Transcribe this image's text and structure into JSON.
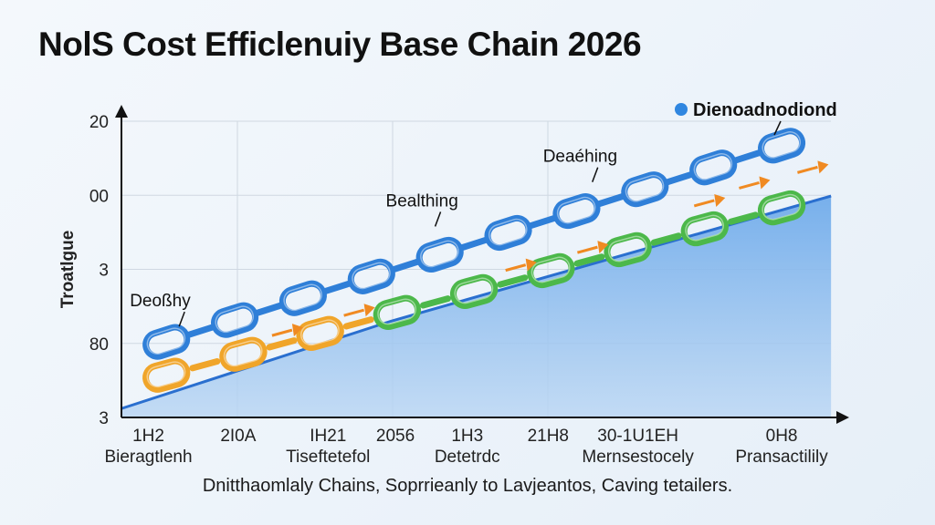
{
  "title": "NolS Cost Efficlenuiy Base Chain 2026",
  "caption": "Dnitthaomlaly Chains, Soprrieanly to Lavjeantos, Caving tetailers.",
  "chart_data": {
    "type": "line",
    "title": "NolS Cost Efficlenuiy Base Chain 2026",
    "ylabel": "Troatlgue",
    "xlabel": "",
    "ylim": [
      0,
      4
    ],
    "xlim": [
      0,
      8
    ],
    "grid": true,
    "legend": {
      "placement": "top-right",
      "entries": [
        {
          "label": "Dienoadnodiond",
          "color": "#2f86e0"
        }
      ]
    },
    "y_ticks": [
      {
        "value": 4,
        "label": "20"
      },
      {
        "value": 3,
        "label": "00"
      },
      {
        "value": 2,
        "label": "3"
      },
      {
        "value": 1,
        "label": "80"
      },
      {
        "value": 0,
        "label": "3"
      }
    ],
    "x_ticks": [
      {
        "value": 0.3,
        "top": "1H2",
        "bottom": "Bieragtlenh"
      },
      {
        "value": 1.3,
        "top": "2I0A",
        "bottom": ""
      },
      {
        "value": 2.3,
        "top": "IH21",
        "bottom": "Tiseftetefol"
      },
      {
        "value": 3.05,
        "top": "2056",
        "bottom": ""
      },
      {
        "value": 3.85,
        "top": "1H3",
        "bottom": "Detetrdc"
      },
      {
        "value": 4.75,
        "top": "21H8",
        "bottom": ""
      },
      {
        "value": 5.75,
        "top": "30-1U1EH",
        "bottom": "Mernsestocely"
      },
      {
        "value": 7.35,
        "top": "0H8",
        "bottom": "Pransactilily"
      }
    ],
    "series": [
      {
        "kind": "chain",
        "color": "#2f7fd8",
        "x": [
          0.5,
          7.35
        ],
        "y": [
          1.02,
          3.67
        ],
        "links": 10
      },
      {
        "kind": "chain",
        "color": "#f0a52a",
        "color2": "#4cb84a",
        "x": [
          0.5,
          7.35
        ],
        "y": [
          0.57,
          2.83
        ],
        "links": 9
      },
      {
        "kind": "area",
        "color": "#5b9de4",
        "x": [
          0,
          3.0,
          7.9
        ],
        "y": [
          0.12,
          1.3,
          2.99
        ]
      },
      {
        "kind": "arrows",
        "color": "#f08a22",
        "x": [
          1.9,
          2.7,
          4.5,
          5.3,
          6.6,
          7.1,
          7.75
        ],
        "y": [
          1.18,
          1.45,
          2.06,
          2.3,
          2.93,
          3.17,
          3.38
        ]
      }
    ],
    "annotations": [
      {
        "label": "Deoßhy",
        "x": 0.5,
        "y": 1.5
      },
      {
        "label": "Bealthing",
        "x": 3.35,
        "y": 2.85
      },
      {
        "label": "Deaéhing",
        "x": 5.1,
        "y": 3.45
      }
    ]
  }
}
